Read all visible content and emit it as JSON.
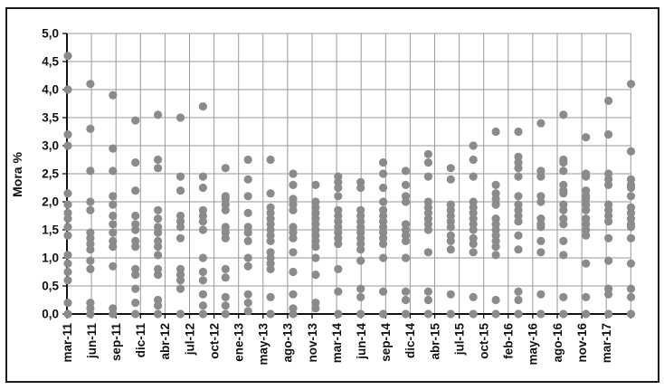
{
  "figure": {
    "background": "#ffffff",
    "border_color": "#1a1a1a"
  },
  "chart_data": {
    "type": "scatter",
    "title": "",
    "xlabel": "",
    "ylabel": "Mora %",
    "ylim": [
      0,
      5
    ],
    "y_tick_step": 0.5,
    "y_ticks": [
      "5,0",
      "4,5",
      "4,0",
      "3,5",
      "3,0",
      "2,5",
      "2,0",
      "1,5",
      "1,0",
      "0,5",
      "0,0"
    ],
    "x_tick_labels": [
      "mar-11",
      "jun-11",
      "sep-11",
      "dic-11",
      "abr-12",
      "jul-12",
      "oct-12",
      "ene-13",
      "may-13",
      "ago-13",
      "nov-13",
      "mar-14",
      "jun-14",
      "sep-14",
      "dic-14",
      "abr-15",
      "jul-15",
      "oct-15",
      "feb-16",
      "may-16",
      "ago-16",
      "nov-16",
      "mar-17"
    ],
    "grid": true,
    "grid_color": "#9a9a9a",
    "axis_color": "#111111",
    "point_color": "#8b8b8b",
    "point_radius": 4.6,
    "legend": null,
    "note": "26 dot columns span the plot width; the rightmost column sits at the plot border without a label",
    "columns": [
      {
        "values": [
          4.6,
          4.0,
          3.2,
          3.0,
          2.15,
          1.95,
          1.8,
          1.7,
          1.55,
          1.4,
          1.05,
          0.9,
          0.75,
          0.6,
          0.2,
          0.0
        ]
      },
      {
        "values": [
          4.1,
          3.3,
          2.55,
          2.0,
          1.85,
          1.45,
          1.35,
          1.25,
          1.15,
          0.95,
          0.8,
          0.2,
          0.1,
          0.0
        ]
      },
      {
        "values": [
          3.9,
          2.95,
          2.55,
          2.1,
          1.95,
          1.75,
          1.6,
          1.45,
          1.3,
          1.2,
          0.85,
          0.1,
          0.0
        ]
      },
      {
        "values": [
          3.45,
          2.7,
          2.2,
          1.75,
          1.6,
          1.5,
          1.3,
          1.2,
          0.8,
          0.7,
          0.45,
          0.2,
          0.0
        ]
      },
      {
        "values": [
          3.55,
          2.75,
          2.6,
          1.85,
          1.7,
          1.55,
          1.45,
          1.3,
          1.2,
          1.05,
          0.8,
          0.7,
          0.25,
          0.15,
          0.0
        ]
      },
      {
        "values": [
          3.5,
          2.45,
          2.2,
          1.75,
          1.65,
          1.55,
          1.35,
          0.8,
          0.7,
          0.6,
          0.45,
          0.0
        ]
      },
      {
        "values": [
          3.7,
          2.45,
          2.25,
          1.85,
          1.75,
          1.65,
          1.5,
          1.0,
          0.75,
          0.6,
          0.35,
          0.15,
          0.0
        ]
      },
      {
        "values": [
          2.6,
          2.1,
          2.05,
          1.95,
          1.85,
          1.55,
          1.45,
          1.35,
          0.8,
          0.65,
          0.3,
          0.15,
          0.0
        ]
      },
      {
        "values": [
          2.75,
          2.4,
          2.1,
          1.8,
          1.55,
          1.45,
          1.3,
          1.0,
          0.85,
          0.35,
          0.2,
          0.05
        ]
      },
      {
        "values": [
          2.75,
          2.15,
          1.9,
          1.8,
          1.7,
          1.6,
          1.5,
          1.4,
          1.3,
          1.1,
          1.0,
          0.9,
          0.8,
          0.3,
          0.0
        ]
      },
      {
        "values": [
          2.5,
          2.3,
          2.05,
          1.95,
          1.85,
          1.55,
          1.45,
          1.35,
          1.1,
          0.75,
          0.35,
          0.1,
          0.0
        ]
      },
      {
        "values": [
          2.3,
          2.0,
          1.9,
          1.8,
          1.7,
          1.6,
          1.5,
          1.4,
          1.3,
          1.2,
          1.0,
          0.7,
          0.2,
          0.1
        ]
      },
      {
        "values": [
          2.45,
          2.35,
          2.25,
          2.1,
          1.85,
          1.75,
          1.65,
          1.55,
          1.45,
          1.35,
          1.25,
          0.8,
          0.4,
          0.0
        ]
      },
      {
        "values": [
          2.35,
          2.25,
          1.85,
          1.75,
          1.65,
          1.55,
          1.45,
          1.35,
          1.25,
          1.15,
          0.95,
          0.45,
          0.3,
          0.0
        ]
      },
      {
        "values": [
          2.7,
          2.5,
          2.25,
          2.0,
          1.85,
          1.75,
          1.65,
          1.55,
          1.45,
          1.35,
          1.25,
          1.0,
          0.4,
          0.0
        ]
      },
      {
        "values": [
          2.55,
          2.3,
          2.1,
          2.0,
          1.6,
          1.5,
          1.4,
          1.3,
          1.0,
          0.4,
          0.25,
          0.0
        ]
      },
      {
        "values": [
          2.85,
          2.7,
          2.45,
          2.0,
          1.9,
          1.8,
          1.7,
          1.6,
          1.5,
          1.1,
          0.4,
          0.25,
          0.0
        ]
      },
      {
        "values": [
          2.6,
          2.4,
          1.95,
          1.85,
          1.75,
          1.65,
          1.55,
          1.4,
          1.3,
          1.15,
          0.35,
          0.0
        ]
      },
      {
        "values": [
          3.0,
          2.75,
          2.45,
          2.0,
          1.9,
          1.8,
          1.7,
          1.6,
          1.5,
          1.35,
          1.25,
          1.1,
          0.3,
          0.0
        ]
      },
      {
        "values": [
          3.25,
          2.3,
          2.15,
          2.05,
          1.95,
          1.7,
          1.6,
          1.5,
          1.4,
          1.3,
          1.2,
          1.05,
          0.25,
          0.0
        ]
      },
      {
        "values": [
          3.25,
          2.8,
          2.7,
          2.6,
          2.45,
          2.1,
          1.95,
          1.85,
          1.75,
          1.65,
          1.4,
          1.15,
          0.4,
          0.25,
          0.0
        ]
      },
      {
        "values": [
          3.4,
          2.55,
          2.45,
          2.1,
          2.0,
          1.7,
          1.6,
          1.55,
          1.3,
          1.1,
          0.35,
          0.0
        ]
      },
      {
        "values": [
          3.55,
          2.75,
          2.7,
          2.55,
          2.3,
          2.2,
          2.15,
          1.95,
          1.85,
          1.7,
          1.6,
          1.3,
          1.05,
          0.3,
          0.0
        ]
      },
      {
        "values": [
          3.15,
          2.5,
          2.45,
          2.2,
          2.1,
          2.05,
          1.95,
          1.85,
          1.7,
          1.6,
          1.5,
          1.4,
          0.9,
          0.3,
          0.0
        ]
      },
      {
        "values": [
          3.8,
          3.2,
          2.5,
          2.4,
          2.3,
          1.95,
          1.85,
          1.75,
          1.65,
          1.35,
          0.95,
          0.45,
          0.35,
          0.0
        ]
      },
      {
        "values": [
          4.1,
          2.9,
          2.4,
          2.3,
          2.25,
          2.1,
          1.9,
          1.8,
          1.7,
          1.6,
          1.55,
          1.35,
          0.9,
          0.45,
          0.3,
          0.0
        ]
      }
    ]
  }
}
